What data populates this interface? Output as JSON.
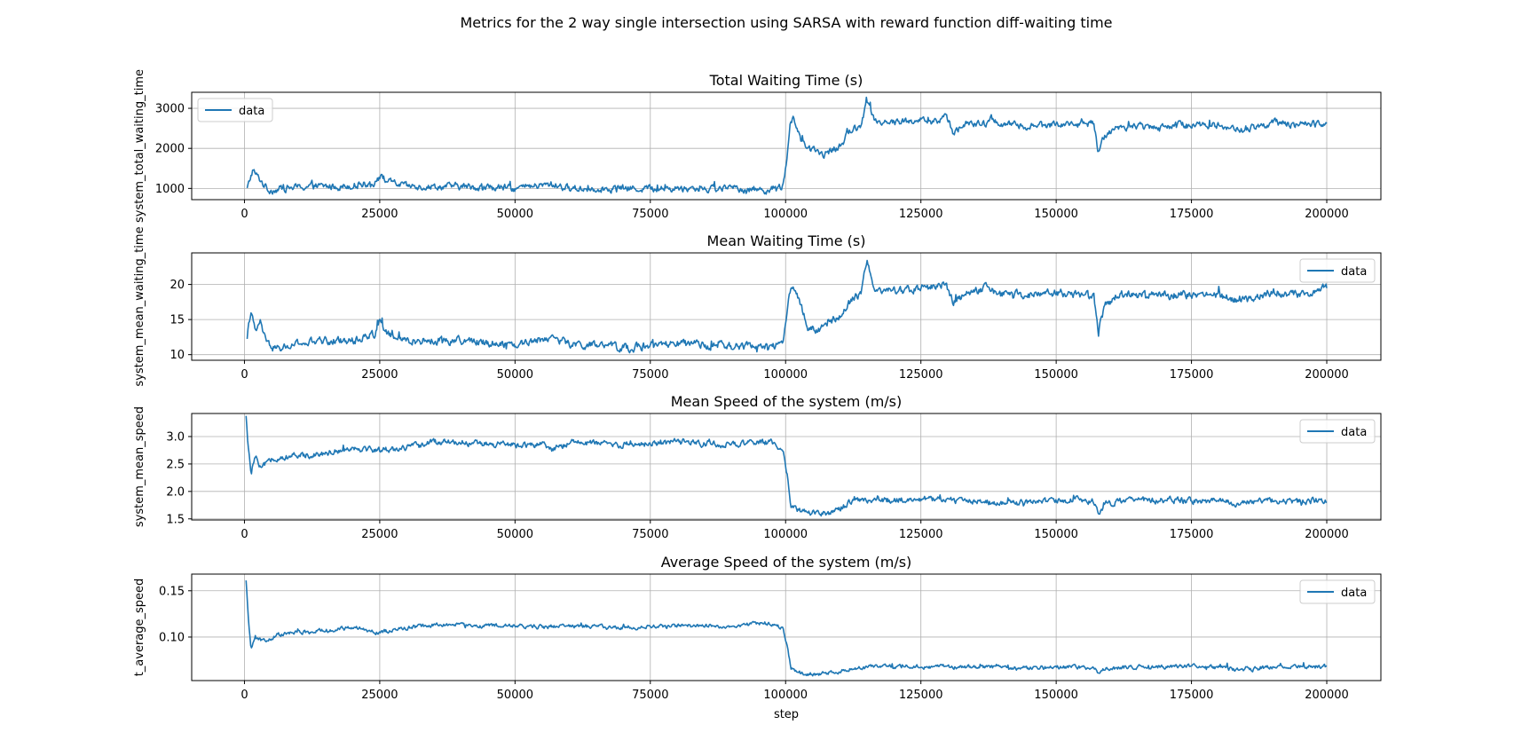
{
  "figure": {
    "suptitle": "Metrics for the 2 way single intersection using SARSA with reward function diff-waiting time"
  },
  "style": {
    "line_color": "#1f77b4",
    "grid_color": "#b0b0b0",
    "axes_color": "#000000",
    "legend_border": "#cccccc"
  },
  "chart_data": [
    {
      "type": "line",
      "title": "Total Waiting Time (s)",
      "xlabel": "",
      "ylabel": "system_total_waiting_time",
      "xlim": [
        -9750,
        210000
      ],
      "ylim": [
        720,
        3400
      ],
      "xticks": [
        0,
        25000,
        50000,
        75000,
        100000,
        125000,
        150000,
        175000,
        200000
      ],
      "xtick_labels": [
        "0",
        "25000",
        "50000",
        "75000",
        "100000",
        "125000",
        "150000",
        "175000",
        "200000"
      ],
      "yticks": [
        1000,
        2000,
        3000
      ],
      "ytick_labels": [
        "1000",
        "2000",
        "3000"
      ],
      "grid": true,
      "legend": "upper left",
      "series": [
        {
          "name": "data",
          "anchors": [
            [
              500,
              980
            ],
            [
              1500,
              1450
            ],
            [
              3000,
              1200
            ],
            [
              4500,
              950
            ],
            [
              7000,
              1000
            ],
            [
              12000,
              1050
            ],
            [
              18000,
              1050
            ],
            [
              24000,
              1150
            ],
            [
              25000,
              1300
            ],
            [
              27000,
              1150
            ],
            [
              30000,
              1050
            ],
            [
              40000,
              1050
            ],
            [
              50000,
              1000
            ],
            [
              57000,
              1100
            ],
            [
              60000,
              1000
            ],
            [
              70000,
              1000
            ],
            [
              80000,
              1000
            ],
            [
              90000,
              1000
            ],
            [
              97000,
              960
            ],
            [
              99500,
              1050
            ],
            [
              100200,
              1600
            ],
            [
              100800,
              2600
            ],
            [
              101500,
              2800
            ],
            [
              103000,
              2100
            ],
            [
              105000,
              1950
            ],
            [
              107000,
              1850
            ],
            [
              110000,
              2050
            ],
            [
              112000,
              2450
            ],
            [
              114000,
              2600
            ],
            [
              115000,
              3150
            ],
            [
              116500,
              2700
            ],
            [
              120000,
              2650
            ],
            [
              125000,
              2700
            ],
            [
              128000,
              2650
            ],
            [
              129500,
              2850
            ],
            [
              131000,
              2400
            ],
            [
              133000,
              2600
            ],
            [
              137000,
              2600
            ],
            [
              138000,
              2750
            ],
            [
              140000,
              2600
            ],
            [
              145000,
              2550
            ],
            [
              150000,
              2600
            ],
            [
              155000,
              2600
            ],
            [
              157000,
              2600
            ],
            [
              157800,
              1900
            ],
            [
              159000,
              2350
            ],
            [
              162000,
              2550
            ],
            [
              170000,
              2550
            ],
            [
              175000,
              2600
            ],
            [
              180000,
              2580
            ],
            [
              184000,
              2450
            ],
            [
              187000,
              2550
            ],
            [
              190000,
              2650
            ],
            [
              195000,
              2580
            ],
            [
              200000,
              2650
            ]
          ],
          "noise": 70,
          "spikes": 120
        }
      ]
    },
    {
      "type": "line",
      "title": "Mean Waiting Time (s)",
      "xlabel": "",
      "ylabel": "system_mean_waiting_time",
      "xlim": [
        -9750,
        210000
      ],
      "ylim": [
        9.2,
        24.5
      ],
      "xticks": [
        0,
        25000,
        50000,
        75000,
        100000,
        125000,
        150000,
        175000,
        200000
      ],
      "xtick_labels": [
        "0",
        "25000",
        "50000",
        "75000",
        "100000",
        "125000",
        "150000",
        "175000",
        "200000"
      ],
      "yticks": [
        10,
        15,
        20
      ],
      "ytick_labels": [
        "10",
        "15",
        "20"
      ],
      "grid": true,
      "legend": "upper right",
      "series": [
        {
          "name": "data",
          "anchors": [
            [
              500,
              12.2
            ],
            [
              1200,
              16.5
            ],
            [
              2000,
              13.0
            ],
            [
              3000,
              14.8
            ],
            [
              4000,
              11.5
            ],
            [
              6000,
              10.8
            ],
            [
              10000,
              11.5
            ],
            [
              15000,
              12.0
            ],
            [
              20000,
              12.0
            ],
            [
              24000,
              13.0
            ],
            [
              25000,
              15.0
            ],
            [
              27000,
              12.5
            ],
            [
              30000,
              12.0
            ],
            [
              40000,
              12.0
            ],
            [
              50000,
              11.5
            ],
            [
              57000,
              12.5
            ],
            [
              60000,
              11.5
            ],
            [
              70000,
              11.0
            ],
            [
              80000,
              11.5
            ],
            [
              90000,
              11.2
            ],
            [
              97000,
              11.0
            ],
            [
              99500,
              12.0
            ],
            [
              100300,
              16.0
            ],
            [
              101000,
              20.0
            ],
            [
              102500,
              18.0
            ],
            [
              104000,
              14.0
            ],
            [
              106000,
              13.5
            ],
            [
              108000,
              14.5
            ],
            [
              110000,
              15.5
            ],
            [
              112000,
              17.5
            ],
            [
              114000,
              19.0
            ],
            [
              115000,
              23.5
            ],
            [
              116500,
              19.5
            ],
            [
              120000,
              19.0
            ],
            [
              125000,
              19.5
            ],
            [
              129500,
              20.0
            ],
            [
              131000,
              17.5
            ],
            [
              133000,
              18.5
            ],
            [
              137000,
              19.5
            ],
            [
              140000,
              18.5
            ],
            [
              145000,
              18.5
            ],
            [
              150000,
              18.8
            ],
            [
              155000,
              18.5
            ],
            [
              157000,
              18.5
            ],
            [
              157800,
              13.5
            ],
            [
              159000,
              17.0
            ],
            [
              162000,
              18.5
            ],
            [
              170000,
              18.5
            ],
            [
              175000,
              18.5
            ],
            [
              180000,
              18.5
            ],
            [
              184000,
              17.5
            ],
            [
              190000,
              19.0
            ],
            [
              195000,
              18.5
            ],
            [
              200000,
              19.5
            ]
          ],
          "noise": 0.45,
          "spikes": 0.7
        }
      ]
    },
    {
      "type": "line",
      "title": "Mean Speed of the system (m/s)",
      "xlabel": "",
      "ylabel": "system_mean_speed",
      "xlim": [
        -9750,
        210000
      ],
      "ylim": [
        1.48,
        3.42
      ],
      "xticks": [
        0,
        25000,
        50000,
        75000,
        100000,
        125000,
        150000,
        175000,
        200000
      ],
      "xtick_labels": [
        "0",
        "25000",
        "50000",
        "75000",
        "100000",
        "125000",
        "150000",
        "175000",
        "200000"
      ],
      "yticks": [
        1.5,
        2.0,
        2.5,
        3.0
      ],
      "ytick_labels": [
        "1.5",
        "2.0",
        "2.5",
        "3.0"
      ],
      "grid": true,
      "legend": "upper right",
      "series": [
        {
          "name": "data",
          "anchors": [
            [
              300,
              3.35
            ],
            [
              700,
              2.8
            ],
            [
              1200,
              2.3
            ],
            [
              2000,
              2.65
            ],
            [
              3000,
              2.4
            ],
            [
              5000,
              2.6
            ],
            [
              10000,
              2.65
            ],
            [
              15000,
              2.7
            ],
            [
              20000,
              2.8
            ],
            [
              25000,
              2.75
            ],
            [
              30000,
              2.8
            ],
            [
              35000,
              2.9
            ],
            [
              40000,
              2.9
            ],
            [
              45000,
              2.85
            ],
            [
              50000,
              2.85
            ],
            [
              55000,
              2.85
            ],
            [
              57000,
              2.75
            ],
            [
              60000,
              2.9
            ],
            [
              70000,
              2.85
            ],
            [
              80000,
              2.9
            ],
            [
              90000,
              2.85
            ],
            [
              97000,
              2.9
            ],
            [
              99500,
              2.8
            ],
            [
              100300,
              2.3
            ],
            [
              101000,
              1.75
            ],
            [
              102500,
              1.65
            ],
            [
              105000,
              1.62
            ],
            [
              108000,
              1.62
            ],
            [
              110000,
              1.68
            ],
            [
              112000,
              1.8
            ],
            [
              115000,
              1.85
            ],
            [
              120000,
              1.84
            ],
            [
              125000,
              1.86
            ],
            [
              130000,
              1.84
            ],
            [
              135000,
              1.82
            ],
            [
              140000,
              1.8
            ],
            [
              145000,
              1.8
            ],
            [
              150000,
              1.84
            ],
            [
              155000,
              1.84
            ],
            [
              157000,
              1.82
            ],
            [
              157800,
              1.58
            ],
            [
              159000,
              1.78
            ],
            [
              162000,
              1.83
            ],
            [
              170000,
              1.84
            ],
            [
              175000,
              1.83
            ],
            [
              180000,
              1.83
            ],
            [
              184000,
              1.78
            ],
            [
              190000,
              1.84
            ],
            [
              195000,
              1.82
            ],
            [
              200000,
              1.85
            ]
          ],
          "noise": 0.045,
          "spikes": 0.06
        }
      ]
    },
    {
      "type": "line",
      "title": "Average Speed of the system (m/s)",
      "xlabel": "step",
      "ylabel": "t_average_speed",
      "xlim": [
        -9750,
        210000
      ],
      "ylim": [
        0.053,
        0.168
      ],
      "xticks": [
        0,
        25000,
        50000,
        75000,
        100000,
        125000,
        150000,
        175000,
        200000
      ],
      "xtick_labels": [
        "0",
        "25000",
        "50000",
        "75000",
        "100000",
        "125000",
        "150000",
        "175000",
        "200000"
      ],
      "yticks": [
        0.1,
        0.15
      ],
      "ytick_labels": [
        "0.10",
        "0.15"
      ],
      "grid": true,
      "legend": "upper right",
      "series": [
        {
          "name": "data",
          "anchors": [
            [
              300,
              0.16
            ],
            [
              700,
              0.12
            ],
            [
              1200,
              0.088
            ],
            [
              2000,
              0.1
            ],
            [
              4000,
              0.095
            ],
            [
              6000,
              0.102
            ],
            [
              10000,
              0.105
            ],
            [
              15000,
              0.107
            ],
            [
              20000,
              0.11
            ],
            [
              25000,
              0.105
            ],
            [
              30000,
              0.11
            ],
            [
              35000,
              0.113
            ],
            [
              40000,
              0.113
            ],
            [
              45000,
              0.112
            ],
            [
              50000,
              0.112
            ],
            [
              55000,
              0.111
            ],
            [
              60000,
              0.112
            ],
            [
              70000,
              0.11
            ],
            [
              80000,
              0.112
            ],
            [
              90000,
              0.112
            ],
            [
              97000,
              0.115
            ],
            [
              99500,
              0.11
            ],
            [
              100300,
              0.09
            ],
            [
              101000,
              0.065
            ],
            [
              103000,
              0.061
            ],
            [
              106000,
              0.06
            ],
            [
              110000,
              0.063
            ],
            [
              113000,
              0.067
            ],
            [
              120000,
              0.068
            ],
            [
              125000,
              0.068
            ],
            [
              130000,
              0.068
            ],
            [
              140000,
              0.067
            ],
            [
              145000,
              0.066
            ],
            [
              150000,
              0.068
            ],
            [
              157000,
              0.067
            ],
            [
              157800,
              0.06
            ],
            [
              159000,
              0.066
            ],
            [
              165000,
              0.068
            ],
            [
              175000,
              0.068
            ],
            [
              180000,
              0.067
            ],
            [
              184000,
              0.064
            ],
            [
              190000,
              0.068
            ],
            [
              200000,
              0.068
            ]
          ],
          "noise": 0.0018,
          "spikes": 0.0025
        }
      ]
    }
  ]
}
